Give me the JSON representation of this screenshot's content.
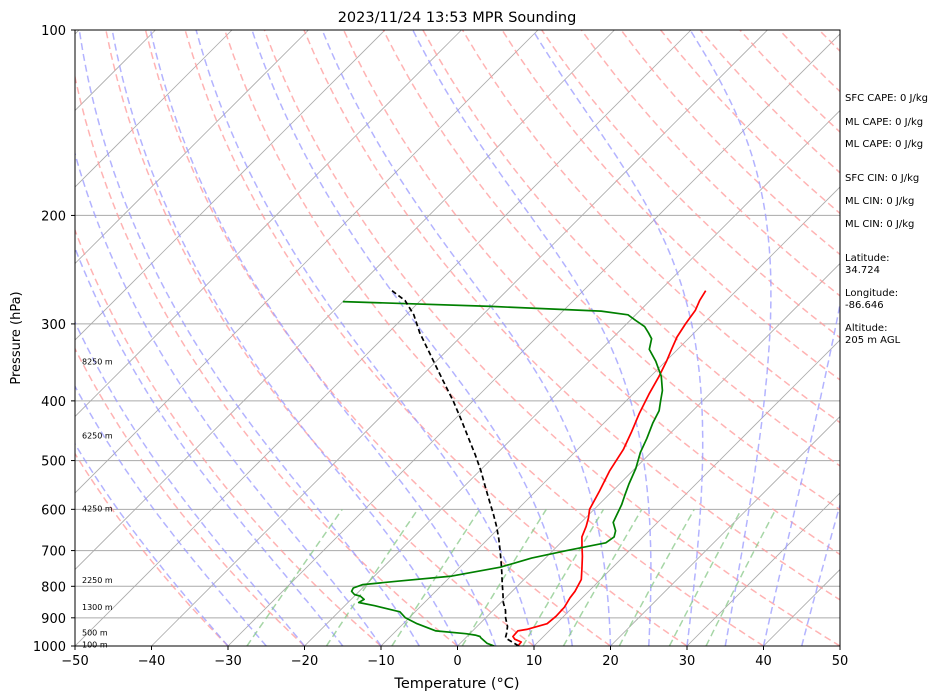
{
  "chart_data": {
    "type": "line",
    "subtype": "skew-t log-p sounding",
    "title": "2023/11/24 13:53 MPR Sounding",
    "xlabel": "Temperature (°C)",
    "ylabel": "Pressure (hPa)",
    "xlim": [
      -50,
      50
    ],
    "ylim": [
      1000,
      100
    ],
    "y_scale": "log",
    "x_ticks": [
      "−50",
      "−40",
      "−30",
      "−20",
      "−10",
      "0",
      "10",
      "20",
      "30",
      "40",
      "50"
    ],
    "y_ticks": [
      100,
      200,
      300,
      400,
      500,
      600,
      700,
      800,
      900,
      1000
    ],
    "height_labels": [
      {
        "label": "8250 m",
        "pressure": 345
      },
      {
        "label": "6250 m",
        "pressure": 455
      },
      {
        "label": "4250 m",
        "pressure": 598
      },
      {
        "label": "2250 m",
        "pressure": 782
      },
      {
        "label": "1300 m",
        "pressure": 865
      },
      {
        "label": "500 m",
        "pressure": 950
      },
      {
        "label": "100 m",
        "pressure": 995
      }
    ],
    "series": [
      {
        "name": "temperature",
        "color": "#ff0000",
        "points": [
          [
            7.9,
            1000
          ],
          [
            7.8,
            985
          ],
          [
            6.6,
            975
          ],
          [
            6.0,
            965
          ],
          [
            5.9,
            945
          ],
          [
            6.9,
            940
          ],
          [
            8.8,
            920
          ],
          [
            9.0,
            895
          ],
          [
            8.9,
            865
          ],
          [
            8.4,
            835
          ],
          [
            8.2,
            815
          ],
          [
            7.5,
            780
          ],
          [
            6.2,
            750
          ],
          [
            4.6,
            715
          ],
          [
            3.3,
            690
          ],
          [
            2.0,
            665
          ],
          [
            1.2,
            640
          ],
          [
            0.4,
            620
          ],
          [
            -0.6,
            600
          ],
          [
            -1.7,
            560
          ],
          [
            -3.0,
            520
          ],
          [
            -4.0,
            480
          ],
          [
            -5.2,
            450
          ],
          [
            -6.6,
            420
          ],
          [
            -7.9,
            390
          ],
          [
            -8.9,
            365
          ],
          [
            -9.9,
            345
          ],
          [
            -10.8,
            330
          ],
          [
            -11.7,
            315
          ],
          [
            -12.3,
            300
          ],
          [
            -12.8,
            285
          ],
          [
            -13.5,
            275
          ],
          [
            -14.0,
            265
          ]
        ]
      },
      {
        "name": "dewpoint",
        "color": "#008000",
        "points": [
          [
            4.8,
            1000
          ],
          [
            3.5,
            990
          ],
          [
            2.0,
            970
          ],
          [
            1.7,
            965
          ],
          [
            0.9,
            960
          ],
          [
            -0.5,
            955
          ],
          [
            -4.8,
            945
          ],
          [
            -8.2,
            920
          ],
          [
            -10.5,
            900
          ],
          [
            -12.0,
            880
          ],
          [
            -16.1,
            860
          ],
          [
            -18.6,
            850
          ],
          [
            -18.3,
            840
          ],
          [
            -19.2,
            830
          ],
          [
            -20.2,
            825
          ],
          [
            -21.0,
            815
          ],
          [
            -21.2,
            805
          ],
          [
            -20.4,
            795
          ],
          [
            -16.3,
            785
          ],
          [
            -9.9,
            770
          ],
          [
            -4.7,
            745
          ],
          [
            -1.8,
            720
          ],
          [
            1.8,
            700
          ],
          [
            5.9,
            680
          ],
          [
            6.2,
            665
          ],
          [
            5.6,
            650
          ],
          [
            4.2,
            630
          ],
          [
            3.6,
            610
          ],
          [
            3.0,
            590
          ],
          [
            2.2,
            570
          ],
          [
            1.2,
            545
          ],
          [
            0.1,
            515
          ],
          [
            -1.4,
            485
          ],
          [
            -2.4,
            460
          ],
          [
            -3.6,
            435
          ],
          [
            -4.4,
            415
          ],
          [
            -5.5,
            400
          ],
          [
            -6.6,
            385
          ],
          [
            -8.6,
            365
          ],
          [
            -11.3,
            345
          ],
          [
            -13.7,
            330
          ],
          [
            -14.8,
            317
          ],
          [
            -16.0,
            310
          ],
          [
            -17.3,
            303
          ],
          [
            -19.3,
            296
          ],
          [
            -21.0,
            290
          ],
          [
            -25.0,
            286
          ],
          [
            -40.0,
            281
          ],
          [
            -60.0,
            276
          ]
        ]
      },
      {
        "name": "parcel",
        "color": "#000000",
        "style": "dashed",
        "points": [
          [
            8.0,
            1000
          ],
          [
            5.2,
            970
          ],
          [
            4.8,
            955
          ],
          [
            4.0,
            930
          ],
          [
            2.6,
            900
          ],
          [
            1.6,
            875
          ],
          [
            0.3,
            850
          ],
          [
            -1.0,
            820
          ],
          [
            -2.4,
            790
          ],
          [
            -3.8,
            760
          ],
          [
            -5.3,
            730
          ],
          [
            -6.9,
            700
          ],
          [
            -8.6,
            670
          ],
          [
            -10.5,
            640
          ],
          [
            -12.6,
            610
          ],
          [
            -14.9,
            580
          ],
          [
            -17.3,
            550
          ],
          [
            -19.8,
            520
          ],
          [
            -22.6,
            490
          ],
          [
            -25.7,
            460
          ],
          [
            -29.0,
            430
          ],
          [
            -32.6,
            400
          ],
          [
            -36.7,
            370
          ],
          [
            -41.1,
            340
          ],
          [
            -45.9,
            310
          ],
          [
            -49.0,
            290
          ],
          [
            -52.0,
            275
          ],
          [
            -55.0,
            265
          ]
        ]
      }
    ]
  },
  "side_stats": {
    "sfc_cape": "SFC CAPE: 0 J/kg",
    "ml_cape_1": "ML CAPE: 0 J/kg",
    "ml_cape_2": "ML CAPE: 0 J/kg",
    "sfc_cin": "SFC CIN: 0 J/kg",
    "ml_cin_1": "ML CIN: 0 J/kg",
    "ml_cin_2": "ML CIN: 0 J/kg",
    "latitude_label": "Latitude:",
    "latitude_value": "34.724",
    "longitude_label": "Longitude:",
    "longitude_value": "-86.646",
    "altitude_label": "Altitude:",
    "altitude_value": "205 m AGL"
  },
  "colors": {
    "isotherm": "#aaaaaa",
    "dry_adiabat": "#ff9a9a",
    "moist_adiabat": "#9a9aff",
    "mixing_ratio": "#88c888",
    "hodo_purple": "#b08ad0"
  }
}
